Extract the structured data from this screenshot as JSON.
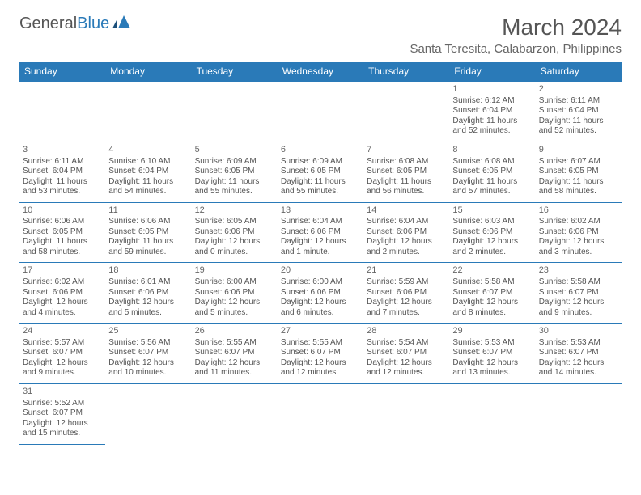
{
  "logo": {
    "part1": "General",
    "part2": "Blue"
  },
  "title": "March 2024",
  "subtitle": "Santa Teresita, Calabarzon, Philippines",
  "weekdays": [
    "Sunday",
    "Monday",
    "Tuesday",
    "Wednesday",
    "Thursday",
    "Friday",
    "Saturday"
  ],
  "colors": {
    "header_bg": "#2a7ab8",
    "header_fg": "#ffffff",
    "text": "#555555",
    "border": "#2a7ab8",
    "background": "#ffffff"
  },
  "typography": {
    "title_fontsize": 28,
    "subtitle_fontsize": 15,
    "weekday_fontsize": 12,
    "cell_fontsize": 10
  },
  "rows": [
    [
      null,
      null,
      null,
      null,
      null,
      {
        "n": "1",
        "sr": "Sunrise: 6:12 AM",
        "ss": "Sunset: 6:04 PM",
        "d1": "Daylight: 11 hours",
        "d2": "and 52 minutes."
      },
      {
        "n": "2",
        "sr": "Sunrise: 6:11 AM",
        "ss": "Sunset: 6:04 PM",
        "d1": "Daylight: 11 hours",
        "d2": "and 52 minutes."
      }
    ],
    [
      {
        "n": "3",
        "sr": "Sunrise: 6:11 AM",
        "ss": "Sunset: 6:04 PM",
        "d1": "Daylight: 11 hours",
        "d2": "and 53 minutes."
      },
      {
        "n": "4",
        "sr": "Sunrise: 6:10 AM",
        "ss": "Sunset: 6:04 PM",
        "d1": "Daylight: 11 hours",
        "d2": "and 54 minutes."
      },
      {
        "n": "5",
        "sr": "Sunrise: 6:09 AM",
        "ss": "Sunset: 6:05 PM",
        "d1": "Daylight: 11 hours",
        "d2": "and 55 minutes."
      },
      {
        "n": "6",
        "sr": "Sunrise: 6:09 AM",
        "ss": "Sunset: 6:05 PM",
        "d1": "Daylight: 11 hours",
        "d2": "and 55 minutes."
      },
      {
        "n": "7",
        "sr": "Sunrise: 6:08 AM",
        "ss": "Sunset: 6:05 PM",
        "d1": "Daylight: 11 hours",
        "d2": "and 56 minutes."
      },
      {
        "n": "8",
        "sr": "Sunrise: 6:08 AM",
        "ss": "Sunset: 6:05 PM",
        "d1": "Daylight: 11 hours",
        "d2": "and 57 minutes."
      },
      {
        "n": "9",
        "sr": "Sunrise: 6:07 AM",
        "ss": "Sunset: 6:05 PM",
        "d1": "Daylight: 11 hours",
        "d2": "and 58 minutes."
      }
    ],
    [
      {
        "n": "10",
        "sr": "Sunrise: 6:06 AM",
        "ss": "Sunset: 6:05 PM",
        "d1": "Daylight: 11 hours",
        "d2": "and 58 minutes."
      },
      {
        "n": "11",
        "sr": "Sunrise: 6:06 AM",
        "ss": "Sunset: 6:05 PM",
        "d1": "Daylight: 11 hours",
        "d2": "and 59 minutes."
      },
      {
        "n": "12",
        "sr": "Sunrise: 6:05 AM",
        "ss": "Sunset: 6:06 PM",
        "d1": "Daylight: 12 hours",
        "d2": "and 0 minutes."
      },
      {
        "n": "13",
        "sr": "Sunrise: 6:04 AM",
        "ss": "Sunset: 6:06 PM",
        "d1": "Daylight: 12 hours",
        "d2": "and 1 minute."
      },
      {
        "n": "14",
        "sr": "Sunrise: 6:04 AM",
        "ss": "Sunset: 6:06 PM",
        "d1": "Daylight: 12 hours",
        "d2": "and 2 minutes."
      },
      {
        "n": "15",
        "sr": "Sunrise: 6:03 AM",
        "ss": "Sunset: 6:06 PM",
        "d1": "Daylight: 12 hours",
        "d2": "and 2 minutes."
      },
      {
        "n": "16",
        "sr": "Sunrise: 6:02 AM",
        "ss": "Sunset: 6:06 PM",
        "d1": "Daylight: 12 hours",
        "d2": "and 3 minutes."
      }
    ],
    [
      {
        "n": "17",
        "sr": "Sunrise: 6:02 AM",
        "ss": "Sunset: 6:06 PM",
        "d1": "Daylight: 12 hours",
        "d2": "and 4 minutes."
      },
      {
        "n": "18",
        "sr": "Sunrise: 6:01 AM",
        "ss": "Sunset: 6:06 PM",
        "d1": "Daylight: 12 hours",
        "d2": "and 5 minutes."
      },
      {
        "n": "19",
        "sr": "Sunrise: 6:00 AM",
        "ss": "Sunset: 6:06 PM",
        "d1": "Daylight: 12 hours",
        "d2": "and 5 minutes."
      },
      {
        "n": "20",
        "sr": "Sunrise: 6:00 AM",
        "ss": "Sunset: 6:06 PM",
        "d1": "Daylight: 12 hours",
        "d2": "and 6 minutes."
      },
      {
        "n": "21",
        "sr": "Sunrise: 5:59 AM",
        "ss": "Sunset: 6:06 PM",
        "d1": "Daylight: 12 hours",
        "d2": "and 7 minutes."
      },
      {
        "n": "22",
        "sr": "Sunrise: 5:58 AM",
        "ss": "Sunset: 6:07 PM",
        "d1": "Daylight: 12 hours",
        "d2": "and 8 minutes."
      },
      {
        "n": "23",
        "sr": "Sunrise: 5:58 AM",
        "ss": "Sunset: 6:07 PM",
        "d1": "Daylight: 12 hours",
        "d2": "and 9 minutes."
      }
    ],
    [
      {
        "n": "24",
        "sr": "Sunrise: 5:57 AM",
        "ss": "Sunset: 6:07 PM",
        "d1": "Daylight: 12 hours",
        "d2": "and 9 minutes."
      },
      {
        "n": "25",
        "sr": "Sunrise: 5:56 AM",
        "ss": "Sunset: 6:07 PM",
        "d1": "Daylight: 12 hours",
        "d2": "and 10 minutes."
      },
      {
        "n": "26",
        "sr": "Sunrise: 5:55 AM",
        "ss": "Sunset: 6:07 PM",
        "d1": "Daylight: 12 hours",
        "d2": "and 11 minutes."
      },
      {
        "n": "27",
        "sr": "Sunrise: 5:55 AM",
        "ss": "Sunset: 6:07 PM",
        "d1": "Daylight: 12 hours",
        "d2": "and 12 minutes."
      },
      {
        "n": "28",
        "sr": "Sunrise: 5:54 AM",
        "ss": "Sunset: 6:07 PM",
        "d1": "Daylight: 12 hours",
        "d2": "and 12 minutes."
      },
      {
        "n": "29",
        "sr": "Sunrise: 5:53 AM",
        "ss": "Sunset: 6:07 PM",
        "d1": "Daylight: 12 hours",
        "d2": "and 13 minutes."
      },
      {
        "n": "30",
        "sr": "Sunrise: 5:53 AM",
        "ss": "Sunset: 6:07 PM",
        "d1": "Daylight: 12 hours",
        "d2": "and 14 minutes."
      }
    ],
    [
      {
        "n": "31",
        "sr": "Sunrise: 5:52 AM",
        "ss": "Sunset: 6:07 PM",
        "d1": "Daylight: 12 hours",
        "d2": "and 15 minutes."
      },
      null,
      null,
      null,
      null,
      null,
      null
    ]
  ]
}
